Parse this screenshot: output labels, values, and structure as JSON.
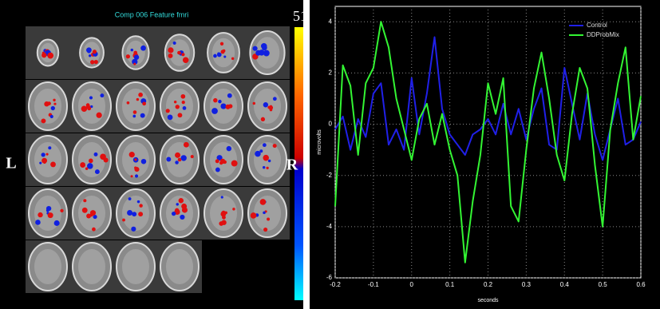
{
  "brain_panel": {
    "title": "Comp 006 Feature fmri",
    "colorbar_max": 51,
    "left_label": "L",
    "right_label": "R"
  },
  "chart_data": {
    "type": "line",
    "xlabel": "seconds",
    "ylabel": "microvolts",
    "x": [
      -0.2,
      -0.18,
      -0.16,
      -0.14,
      -0.12,
      -0.1,
      -0.08,
      -0.06,
      -0.04,
      -0.02,
      0,
      0.02,
      0.04,
      0.06,
      0.08,
      0.1,
      0.12,
      0.14,
      0.16,
      0.18,
      0.2,
      0.22,
      0.24,
      0.26,
      0.28,
      0.3,
      0.32,
      0.34,
      0.36,
      0.38,
      0.4,
      0.42,
      0.44,
      0.46,
      0.48,
      0.5,
      0.52,
      0.54,
      0.56,
      0.58,
      0.6
    ],
    "series": [
      {
        "name": "Control",
        "color": "#2020e8",
        "values": [
          -0.2,
          0.3,
          -1.0,
          0.2,
          -0.5,
          1.2,
          1.6,
          -0.8,
          -0.2,
          -1.0,
          1.8,
          -0.4,
          1.2,
          3.4,
          0.6,
          -0.4,
          -0.8,
          -1.2,
          -0.4,
          -0.2,
          0.2,
          -0.4,
          0.8,
          -0.4,
          0.6,
          -0.6,
          0.6,
          1.4,
          -0.8,
          -1.0,
          2.2,
          0.8,
          -0.6,
          1.2,
          -0.4,
          -1.4,
          -0.2,
          1.0,
          -0.8,
          -0.6,
          0.1
        ]
      },
      {
        "name": "DDProbMix",
        "color": "#33f533",
        "values": [
          -3.2,
          2.3,
          1.5,
          -1.2,
          1.6,
          2.2,
          4.0,
          3.0,
          1.0,
          -0.2,
          -1.4,
          0.2,
          0.8,
          -0.8,
          0.4,
          -1.0,
          -2.0,
          -5.4,
          -3.0,
          -1.2,
          1.6,
          0.4,
          1.8,
          -3.2,
          -3.8,
          -1.0,
          1.4,
          2.8,
          1.0,
          -1.2,
          -2.2,
          0.4,
          2.2,
          1.4,
          -1.6,
          -4.0,
          -0.2,
          1.6,
          3.0,
          -0.6,
          1.1
        ]
      }
    ],
    "xlim": [
      -0.2,
      0.6
    ],
    "ylim": [
      -6,
      4.6
    ],
    "xticks": [
      -0.2,
      -0.1,
      0,
      0.1,
      0.2,
      0.3,
      0.4,
      0.5,
      0.6
    ],
    "yticks": [
      -6,
      -4,
      -2,
      0,
      2,
      4
    ],
    "grid": true,
    "legend": "upper right"
  }
}
